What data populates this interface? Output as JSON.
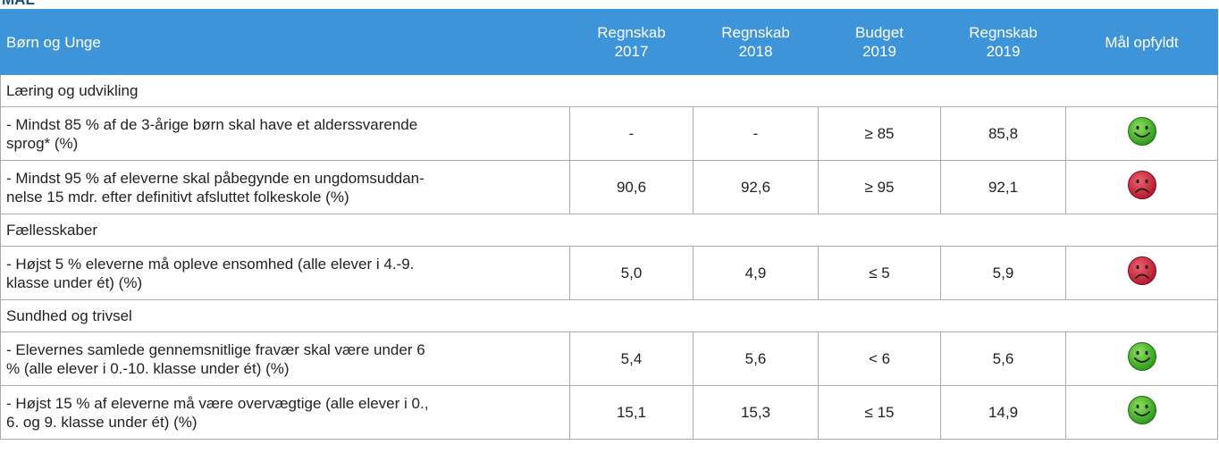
{
  "heading": "MÅL",
  "table": {
    "columns": [
      [
        "Børn og Unge"
      ],
      [
        "Regnskab",
        "2017"
      ],
      [
        "Regnskab",
        "2018"
      ],
      [
        "Budget",
        "2019"
      ],
      [
        "Regnskab",
        "2019"
      ],
      [
        "Mål opfyldt"
      ]
    ],
    "rows": [
      {
        "type": "section",
        "label": [
          "Læring og udvikling"
        ]
      },
      {
        "type": "item",
        "label": [
          "- Mindst 85 % af de 3-årige børn skal have et alderssvarende",
          "sprog* (%)"
        ],
        "cells": [
          "-",
          "-",
          "≥ 85",
          "85,8"
        ],
        "met": true
      },
      {
        "type": "item",
        "label": [
          "- Mindst 95 % af eleverne skal påbegynde en ungdomsuddan-",
          "nelse 15 mdr. efter definitivt afsluttet folkeskole (%)"
        ],
        "cells": [
          "90,6",
          "92,6",
          "≥ 95",
          "92,1"
        ],
        "met": false
      },
      {
        "type": "section",
        "label": [
          "Fællesskaber"
        ]
      },
      {
        "type": "item",
        "label": [
          "- Højst 5 % eleverne må opleve ensomhed (alle elever i 4.-9.",
          "klasse under ét) (%)"
        ],
        "cells": [
          "5,0",
          "4,9",
          "≤ 5",
          "5,9"
        ],
        "met": false
      },
      {
        "type": "section",
        "label": [
          "Sundhed og trivsel"
        ]
      },
      {
        "type": "item",
        "label": [
          "- Elevernes samlede gennemsnitlige fravær skal være under 6",
          "% (alle elever i 0.-10. klasse under ét) (%)"
        ],
        "cells": [
          "5,4",
          "5,6",
          "< 6",
          "5,6"
        ],
        "met": true
      },
      {
        "type": "item",
        "label": [
          "- Højst 15 % af eleverne må være overvægtige (alle elever i 0.,",
          "6. og 9. klasse under ét) (%)"
        ],
        "cells": [
          "15,1",
          "15,3",
          "≤ 15",
          "14,9"
        ],
        "met": true
      }
    ]
  }
}
